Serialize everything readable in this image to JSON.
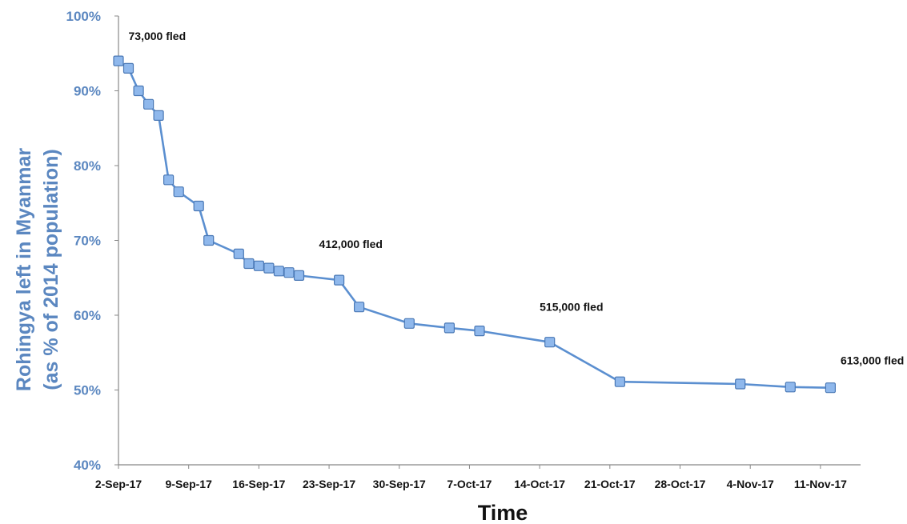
{
  "chart_data": {
    "type": "line",
    "xlabel": "Time",
    "ylabel_lines": [
      "Rohingya left in Myanmar",
      "(as % of 2014 population)"
    ],
    "x_axis": {
      "start": "2017-09-02",
      "end": "2017-11-15",
      "tick_dates": [
        "2017-09-02",
        "2017-09-09",
        "2017-09-16",
        "2017-09-23",
        "2017-09-30",
        "2017-10-07",
        "2017-10-14",
        "2017-10-21",
        "2017-10-28",
        "2017-11-04",
        "2017-11-11"
      ],
      "tick_labels": [
        "2-Sep-17",
        "9-Sep-17",
        "16-Sep-17",
        "23-Sep-17",
        "30-Sep-17",
        "7-Oct-17",
        "14-Oct-17",
        "21-Oct-17",
        "28-Oct-17",
        "4-Nov-17",
        "11-Nov-17"
      ]
    },
    "y_axis": {
      "ylim": [
        40,
        100
      ],
      "ticks": [
        40,
        50,
        60,
        70,
        80,
        90,
        100
      ],
      "tick_labels": [
        "40%",
        "50%",
        "60%",
        "70%",
        "80%",
        "90%",
        "100%"
      ]
    },
    "grid": false,
    "legend": "none",
    "series": [
      {
        "color": "#5b8fd0",
        "marker": "square",
        "points": [
          {
            "x": "2017-09-02",
            "y": 94.0
          },
          {
            "x": "2017-09-03",
            "y": 93.0
          },
          {
            "x": "2017-09-04",
            "y": 90.0
          },
          {
            "x": "2017-09-05",
            "y": 88.2
          },
          {
            "x": "2017-09-06",
            "y": 86.7
          },
          {
            "x": "2017-09-07",
            "y": 78.1
          },
          {
            "x": "2017-09-08",
            "y": 76.5
          },
          {
            "x": "2017-09-10",
            "y": 74.6
          },
          {
            "x": "2017-09-11",
            "y": 70.0
          },
          {
            "x": "2017-09-14",
            "y": 68.2
          },
          {
            "x": "2017-09-15",
            "y": 66.9
          },
          {
            "x": "2017-09-16",
            "y": 66.6
          },
          {
            "x": "2017-09-17",
            "y": 66.3
          },
          {
            "x": "2017-09-18",
            "y": 65.9
          },
          {
            "x": "2017-09-19",
            "y": 65.7
          },
          {
            "x": "2017-09-20",
            "y": 65.3
          },
          {
            "x": "2017-09-24",
            "y": 64.7
          },
          {
            "x": "2017-09-26",
            "y": 61.1
          },
          {
            "x": "2017-10-01",
            "y": 58.9
          },
          {
            "x": "2017-10-05",
            "y": 58.3
          },
          {
            "x": "2017-10-08",
            "y": 57.9
          },
          {
            "x": "2017-10-15",
            "y": 56.4
          },
          {
            "x": "2017-10-22",
            "y": 51.1
          },
          {
            "x": "2017-11-03",
            "y": 50.8
          },
          {
            "x": "2017-11-08",
            "y": 50.4
          },
          {
            "x": "2017-11-12",
            "y": 50.3
          }
        ]
      }
    ],
    "annotations": [
      {
        "text": "73,000 fled",
        "x": "2017-09-03",
        "y": 96.8
      },
      {
        "text": "412,000 fled",
        "x": "2017-09-22",
        "y": 69.0
      },
      {
        "text": "515,000 fled",
        "x": "2017-10-14",
        "y": 60.6
      },
      {
        "text": "613,000 fled",
        "x": "2017-11-13",
        "y": 53.4
      }
    ],
    "colors": {
      "axis_text": "#5b87c0",
      "line": "#5b8fd0",
      "marker_fill": "#8fb8ec",
      "marker_stroke": "#4a78b5",
      "axis_line": "#888888"
    }
  }
}
